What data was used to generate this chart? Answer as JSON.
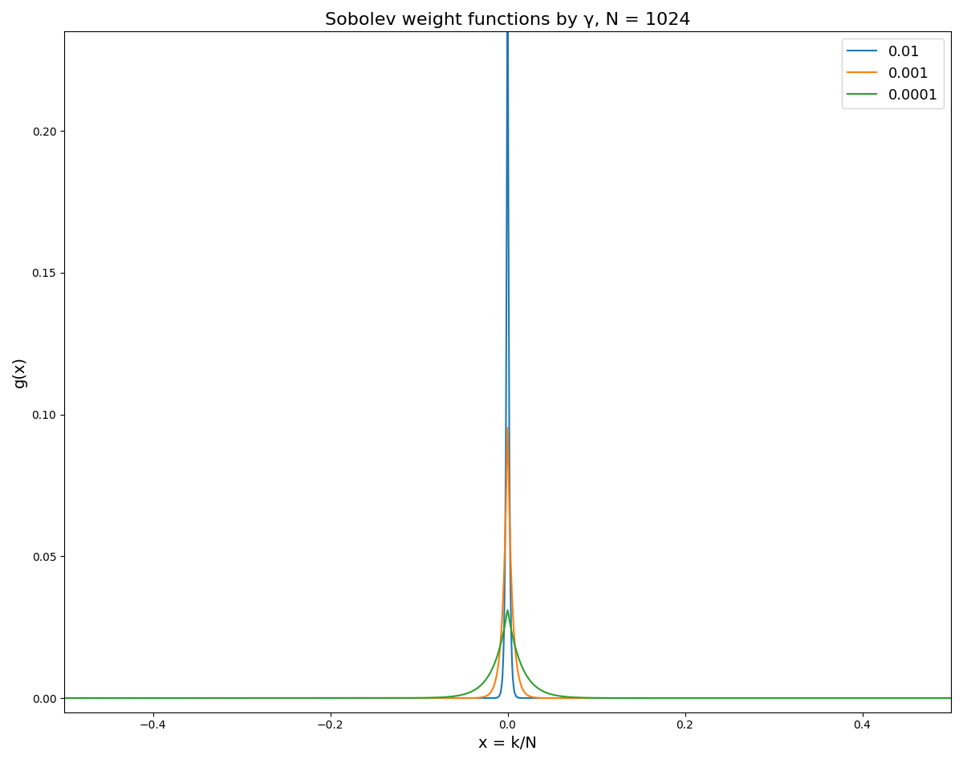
{
  "N": 1024,
  "gammas": [
    0.01,
    0.001,
    0.0001
  ],
  "gamma_labels": [
    "0.01",
    "0.001",
    "0.0001"
  ],
  "colors": [
    "#1f77b4",
    "#ff7f0e",
    "#2ca02c"
  ],
  "title": "Sobolev weight functions by γ, N = 1024",
  "xlabel": "x = k/N",
  "ylabel": "g(x)",
  "xlim": [
    -0.5,
    0.5
  ],
  "ylim": [
    -0.005,
    0.235
  ]
}
